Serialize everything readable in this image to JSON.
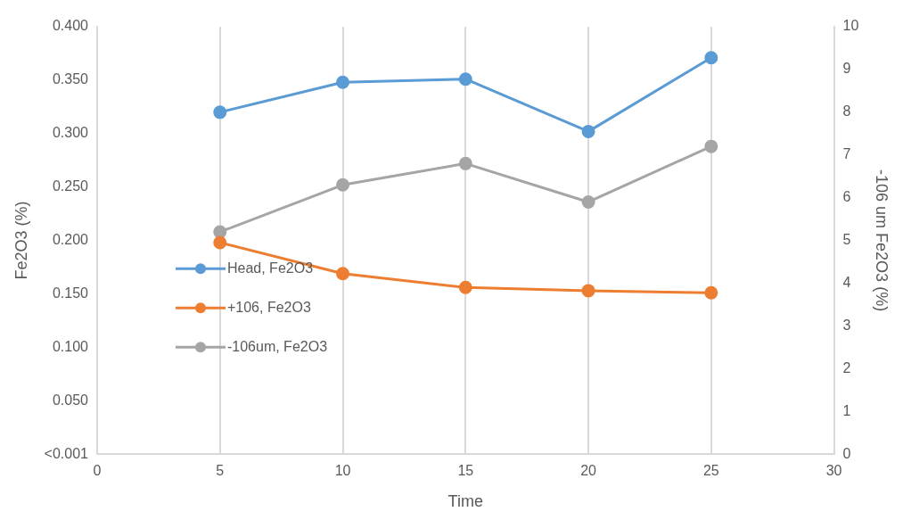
{
  "chart_data": {
    "type": "line",
    "xlabel": "Time",
    "ylabel": "Fe2O3 (%)",
    "y2label": "-106 um Fe2O3 (%)",
    "x": [
      5,
      10,
      15,
      20,
      25
    ],
    "series": [
      {
        "name": "Head, Fe2O3",
        "color": "#5b9bd5",
        "values": [
          0.32,
          0.348,
          0.351,
          0.302,
          0.371
        ]
      },
      {
        "name": "+106, Fe2O3",
        "color": "#ed7d31",
        "values": [
          0.198,
          0.169,
          0.156,
          0.153,
          0.151
        ]
      },
      {
        "name": "-106um, Fe2O3",
        "color": "#a5a5a5",
        "axis": "y2",
        "values": [
          5.2,
          6.3,
          6.8,
          5.9,
          7.2
        ]
      }
    ],
    "xlim": [
      0,
      30
    ],
    "xticks": [
      0,
      5,
      10,
      15,
      20,
      25,
      30
    ],
    "ylim": [
      0,
      0.4
    ],
    "yticks": [
      {
        "value": 0,
        "label": "<0.001"
      },
      {
        "value": 0.05,
        "label": "0.050"
      },
      {
        "value": 0.1,
        "label": "0.100"
      },
      {
        "value": 0.15,
        "label": "0.150"
      },
      {
        "value": 0.2,
        "label": "0.200"
      },
      {
        "value": 0.25,
        "label": "0.250"
      },
      {
        "value": 0.3,
        "label": "0.300"
      },
      {
        "value": 0.35,
        "label": "0.350"
      },
      {
        "value": 0.4,
        "label": "0.400"
      }
    ],
    "y2lim": [
      0,
      10
    ],
    "y2ticks": [
      0,
      1,
      2,
      3,
      4,
      5,
      6,
      7,
      8,
      9,
      10
    ],
    "grid": "x",
    "legend": "bottom left",
    "marker": "circle",
    "line_style": "solid"
  }
}
